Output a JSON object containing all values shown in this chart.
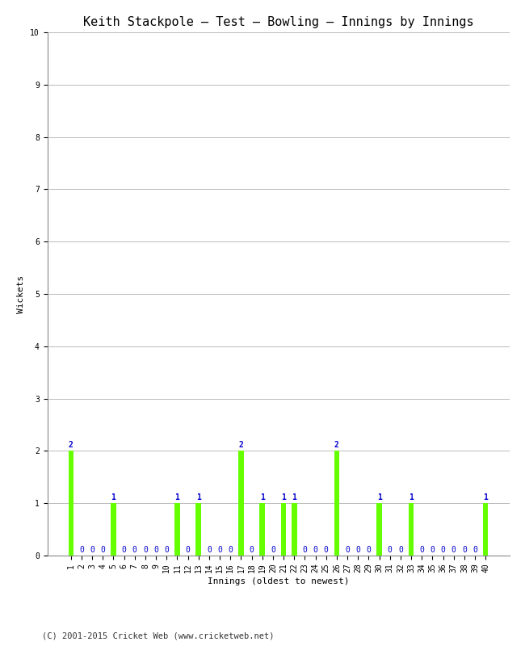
{
  "title": "Keith Stackpole – Test – Bowling – Innings by Innings",
  "xlabel": "Innings (oldest to newest)",
  "ylabel": "Wickets",
  "ylim": [
    0,
    10
  ],
  "yticks": [
    0,
    1,
    2,
    3,
    4,
    5,
    6,
    7,
    8,
    9,
    10
  ],
  "innings": [
    1,
    2,
    3,
    4,
    5,
    6,
    7,
    8,
    9,
    10,
    11,
    12,
    13,
    14,
    15,
    16,
    17,
    18,
    19,
    20,
    21,
    22,
    23,
    24,
    25,
    26,
    27,
    28,
    29,
    30,
    31,
    32,
    33,
    34,
    35,
    36,
    37,
    38,
    39,
    40
  ],
  "wickets": [
    2,
    0,
    0,
    0,
    1,
    0,
    0,
    0,
    0,
    0,
    1,
    0,
    1,
    0,
    0,
    0,
    2,
    0,
    1,
    0,
    1,
    1,
    0,
    0,
    0,
    2,
    0,
    0,
    0,
    1,
    0,
    0,
    1,
    0,
    0,
    0,
    0,
    0,
    0,
    1
  ],
  "bar_color": "#66ff00",
  "label_color": "#0000cc",
  "background_color": "#ffffff",
  "footer": "(C) 2001-2015 Cricket Web (www.cricketweb.net)",
  "title_fontsize": 11,
  "axis_label_fontsize": 8,
  "tick_label_fontsize": 7,
  "bar_label_fontsize": 7,
  "footer_fontsize": 7.5,
  "grid_color": "#bbbbbb"
}
